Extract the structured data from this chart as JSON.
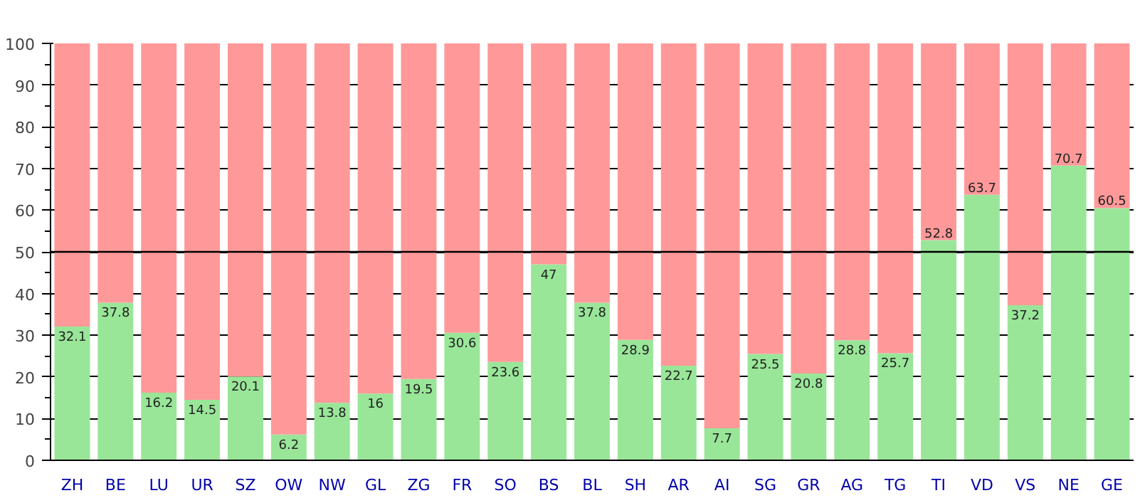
{
  "chart_data": {
    "type": "bar",
    "stacked": true,
    "categories": [
      "ZH",
      "BE",
      "LU",
      "UR",
      "SZ",
      "OW",
      "NW",
      "GL",
      "ZG",
      "FR",
      "SO",
      "BS",
      "BL",
      "SH",
      "AR",
      "AI",
      "SG",
      "GR",
      "AG",
      "TG",
      "TI",
      "VD",
      "VS",
      "NE",
      "GE"
    ],
    "series": [
      {
        "color": "#99e699",
        "values": [
          32.1,
          37.8,
          16.2,
          14.5,
          20.1,
          6.2,
          13.8,
          16,
          19.5,
          30.6,
          23.6,
          47,
          37.8,
          28.9,
          22.7,
          7.7,
          25.5,
          20.8,
          28.8,
          25.7,
          52.8,
          63.7,
          37.2,
          70.7,
          60.5
        ],
        "value_labels": [
          "32.1",
          "37.8",
          "16.2",
          "14.5",
          "20.1",
          "6.2",
          "13.8",
          "16",
          "19.5",
          "30.6",
          "23.6",
          "47",
          "37.8",
          "28.9",
          "22.7",
          "7.7",
          "25.5",
          "20.8",
          "28.8",
          "25.7",
          "52.8",
          "63.7",
          "37.2",
          "70.7",
          "60.5"
        ]
      },
      {
        "color": "#ff9999",
        "values": [
          67.9,
          62.2,
          83.8,
          85.5,
          79.9,
          93.8,
          86.2,
          84,
          80.5,
          69.4,
          76.4,
          53,
          62.2,
          71.1,
          77.3,
          92.3,
          74.5,
          79.2,
          71.2,
          74.3,
          47.2,
          36.3,
          62.8,
          29.3,
          39.5
        ]
      }
    ],
    "ylim": [
      0,
      100
    ],
    "yticks": [
      0,
      10,
      20,
      30,
      40,
      50,
      60,
      70,
      80,
      90,
      100
    ],
    "grid": "y",
    "ref_lines": [
      {
        "axis": "y",
        "value": 50,
        "color": "#000000"
      }
    ]
  }
}
